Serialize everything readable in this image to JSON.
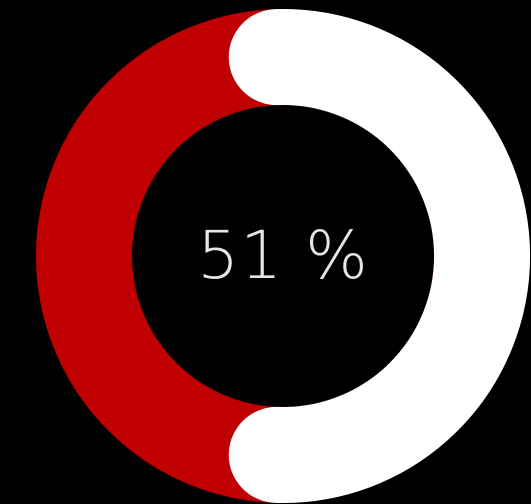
{
  "progress": {
    "percent": 51,
    "label": "51 %"
  },
  "colors": {
    "background": "#000000",
    "track": "#c00000",
    "progress": "#ffffff",
    "text": "#e6e6e6"
  }
}
